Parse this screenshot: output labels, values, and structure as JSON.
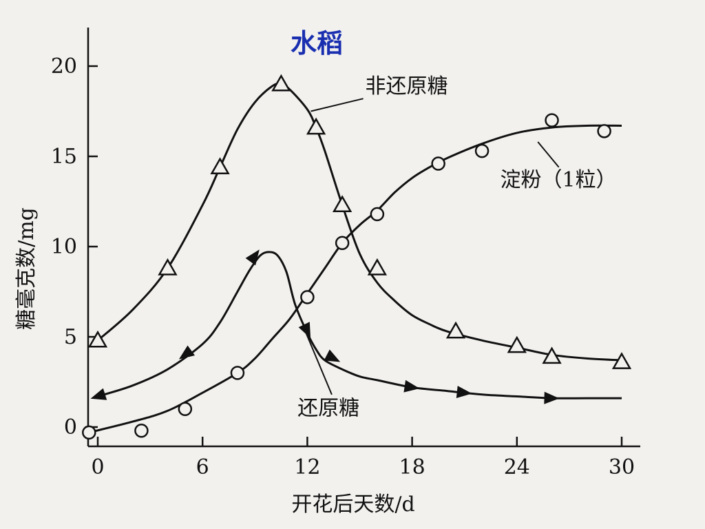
{
  "chart_data": {
    "type": "line",
    "title": "水稻",
    "xlabel": "开花后天数/d",
    "ylabel": "糖毫克数/mg",
    "xlim": [
      0,
      30
    ],
    "ylim": [
      0,
      20
    ],
    "xticks": [
      "0",
      "6",
      "12",
      "18",
      "24",
      "30"
    ],
    "yticks": [
      "0",
      "5",
      "10",
      "15",
      "20"
    ],
    "grid": false,
    "series": [
      {
        "name": "非还原糖",
        "marker": "triangle-open",
        "curve_x": [
          0,
          2,
          4,
          6,
          7,
          8,
          9,
          10,
          10.5,
          11,
          12,
          12.5,
          13,
          14,
          15,
          16,
          17,
          18,
          19,
          20,
          22,
          24,
          26,
          28,
          30
        ],
        "curve_y": [
          4.8,
          6.5,
          8.8,
          12.3,
          14.4,
          16.5,
          18.0,
          18.9,
          19.0,
          18.7,
          17.6,
          16.6,
          15.3,
          12.3,
          9.6,
          8.0,
          7.0,
          6.2,
          5.7,
          5.3,
          4.8,
          4.4,
          4.0,
          3.8,
          3.7
        ],
        "points_x": [
          0,
          4,
          7,
          10.5,
          12.5,
          14,
          16,
          20.5,
          24,
          26,
          30
        ],
        "points_y": [
          4.8,
          8.8,
          14.4,
          19.0,
          16.6,
          12.3,
          8.8,
          5.3,
          4.5,
          3.9,
          3.6
        ]
      },
      {
        "name": "还原糖",
        "marker": "arrow-filled",
        "curve_x": [
          0,
          2,
          4,
          6,
          7,
          8,
          8.7,
          9.3,
          9.8,
          10.3,
          10.8,
          11.3,
          12,
          12.5,
          13,
          14,
          15,
          16,
          18,
          20,
          22,
          24,
          26,
          28,
          30
        ],
        "curve_y": [
          1.7,
          2.3,
          3.2,
          4.6,
          5.8,
          7.5,
          8.7,
          9.5,
          9.7,
          9.5,
          8.6,
          6.8,
          5.2,
          4.3,
          3.7,
          3.2,
          2.8,
          2.6,
          2.2,
          2.0,
          1.8,
          1.7,
          1.6,
          1.6,
          1.6
        ],
        "points_x": [
          0,
          5,
          9,
          12,
          13.5,
          18,
          21,
          26
        ],
        "points_y": [
          1.7,
          4.0,
          9.5,
          5.3,
          3.8,
          2.2,
          1.9,
          1.6
        ]
      },
      {
        "name": "淀粉(1粒)",
        "marker": "circle-open",
        "curve_x": [
          -0.5,
          2,
          4,
          6,
          8,
          9,
          10,
          11,
          12,
          13,
          14,
          15,
          16,
          17,
          18,
          19,
          20,
          22,
          24,
          26,
          28,
          30
        ],
        "curve_y": [
          -0.3,
          0.3,
          0.9,
          1.9,
          3.0,
          3.8,
          4.9,
          6.0,
          7.4,
          8.8,
          10.2,
          11.2,
          12.0,
          13.0,
          13.8,
          14.4,
          14.9,
          15.7,
          16.3,
          16.6,
          16.7,
          16.7
        ],
        "points_x": [
          -0.5,
          2.5,
          5,
          8,
          12,
          14,
          16,
          19.5,
          22,
          26,
          29
        ],
        "points_y": [
          -0.3,
          -0.2,
          1.0,
          3.0,
          7.2,
          10.2,
          11.8,
          14.6,
          15.3,
          17.0,
          16.4
        ]
      }
    ],
    "annotations": [
      {
        "text": "非还原糖",
        "x": 15,
        "y": 18.9
      },
      {
        "text": "还原糖",
        "x": 14,
        "y": 1.2
      },
      {
        "text": "淀粉（1粒）",
        "x": 26,
        "y": 13.7
      }
    ]
  }
}
